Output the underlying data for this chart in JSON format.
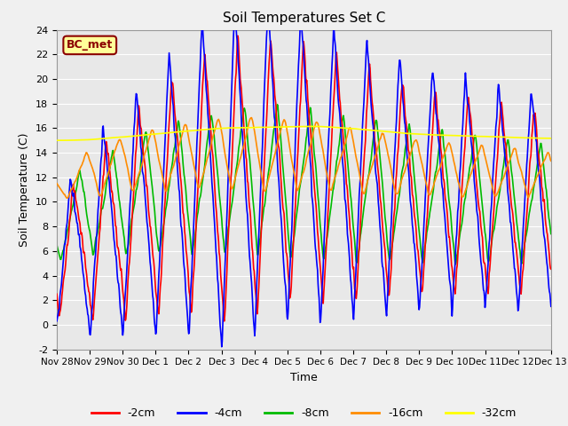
{
  "title": "Soil Temperatures Set C",
  "xlabel": "Time",
  "ylabel": "Soil Temperature (C)",
  "ylim": [
    -2,
    24
  ],
  "yticks": [
    -2,
    0,
    2,
    4,
    6,
    8,
    10,
    12,
    14,
    16,
    18,
    20,
    22,
    24
  ],
  "annotation": "BC_met",
  "annotation_color": "#8B0000",
  "annotation_bg": "#FFFF99",
  "colors": {
    "-2cm": "#FF0000",
    "-4cm": "#0000FF",
    "-8cm": "#00BB00",
    "-16cm": "#FF8C00",
    "-32cm": "#FFFF00"
  },
  "line_width": 1.2,
  "fig_bg": "#F0F0F0",
  "plot_bg": "#E8E8E8",
  "xtick_labels": [
    "Nov 28",
    "Nov 29",
    "Nov 30",
    "Dec 1",
    "Dec 2",
    "Dec 3",
    "Dec 4",
    "Dec 5",
    "Dec 6",
    "Dec 7",
    "Dec 8",
    "Dec 9",
    "Dec 10",
    "Dec 11",
    "Dec 12",
    "Dec 13"
  ],
  "num_points": 960
}
